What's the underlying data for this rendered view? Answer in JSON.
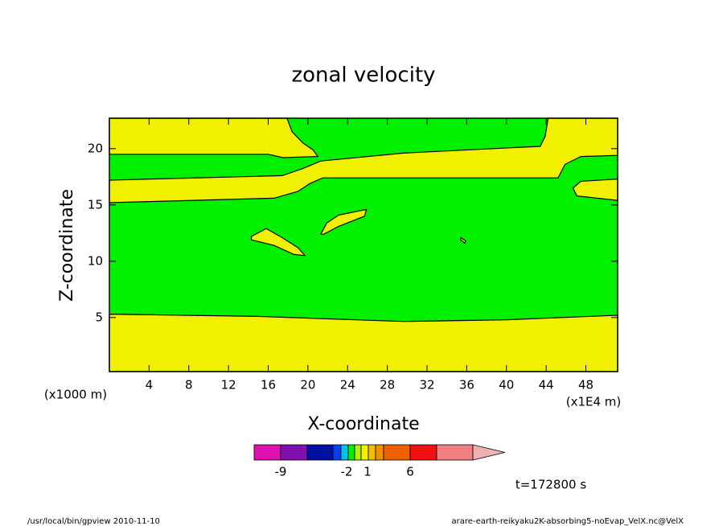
{
  "chart_data": {
    "type": "contour",
    "title": "zonal velocity",
    "xlabel": "X-coordinate",
    "ylabel": "Z-coordinate",
    "xunit": "(x1E4 m)",
    "yunit": "(x1000 m)",
    "time_label": "t=172800 s",
    "footer_left": "/usr/local/bin/gpview  2010-11-10",
    "footer_right": "arare-earth-reikyaku2K-absorbing5-noEvap_VelX.nc@VelX",
    "xlim": [
      0,
      51.2
    ],
    "ylim": [
      0.2,
      22.7
    ],
    "xticks": [
      4,
      8,
      12,
      16,
      20,
      24,
      28,
      32,
      36,
      40,
      44,
      48
    ],
    "yticks": [
      5,
      10,
      15,
      20
    ],
    "background_color": "#00f000",
    "regions": [
      {
        "color": "#f0f000",
        "x": [
          0,
          0,
          15,
          29.6,
          40,
          51.2,
          51.2
        ],
        "y": [
          0.2,
          5.3,
          5.1,
          4.65,
          4.8,
          5.2,
          0.2
        ]
      },
      {
        "color": "#f0f000",
        "x": [
          0,
          17.9,
          18.4,
          19.5,
          20.5,
          21,
          17.5,
          16,
          0
        ],
        "y": [
          22.7,
          22.7,
          21.5,
          20.5,
          19.9,
          19.3,
          19.2,
          19.5,
          19.5
        ]
      },
      {
        "color": "#f0f000",
        "x": [
          0,
          17.4,
          19.4,
          21.3,
          29.6,
          41,
          43.4,
          43.9,
          44.2,
          51.2,
          51.2,
          47.5,
          45.9,
          45.2,
          29.6,
          21.5,
          20.2,
          19,
          16.6,
          0
        ],
        "y": [
          17.2,
          17.6,
          18.2,
          18.9,
          19.6,
          20.1,
          20.2,
          21.1,
          22.7,
          22.7,
          19.4,
          19.3,
          18.6,
          17.4,
          17.4,
          17.4,
          16.9,
          16.2,
          15.6,
          15.2
        ]
      },
      {
        "color": "#f0f000",
        "x": [
          51.2,
          47.5,
          46.7,
          47.1,
          51.2
        ],
        "y": [
          17.3,
          17.1,
          16.5,
          15.8,
          15.4
        ]
      },
      {
        "color": "#f0f000",
        "x": [
          14.3,
          15.8,
          17.4,
          19,
          19.7,
          18.6,
          16.6,
          14.3
        ],
        "y": [
          12.2,
          12.9,
          12.1,
          11.2,
          10.5,
          10.6,
          11.4,
          11.9
        ]
      },
      {
        "color": "#f0f000",
        "x": [
          21.3,
          21.9,
          23.1,
          25.9,
          25.7,
          23.1,
          21.6
        ],
        "y": [
          12.4,
          13.4,
          14.1,
          14.6,
          14,
          13.1,
          12.4
        ]
      },
      {
        "color": "#f0f000",
        "x": [
          35.4,
          35.9,
          35.8,
          35.4
        ],
        "y": [
          12.1,
          11.8,
          11.6,
          11.9
        ]
      }
    ],
    "colorbar": {
      "colors": [
        "#e010b0",
        "#8010b0",
        "#0010a0",
        "#0040f0",
        "#00c0f0",
        "#00f000",
        "#b0f000",
        "#f0f000",
        "#f0c000",
        "#f09000",
        "#f06000",
        "#f01010",
        "#f08080",
        "#f0b0b0"
      ],
      "ticks": [
        -9,
        -2,
        1,
        6
      ]
    }
  }
}
